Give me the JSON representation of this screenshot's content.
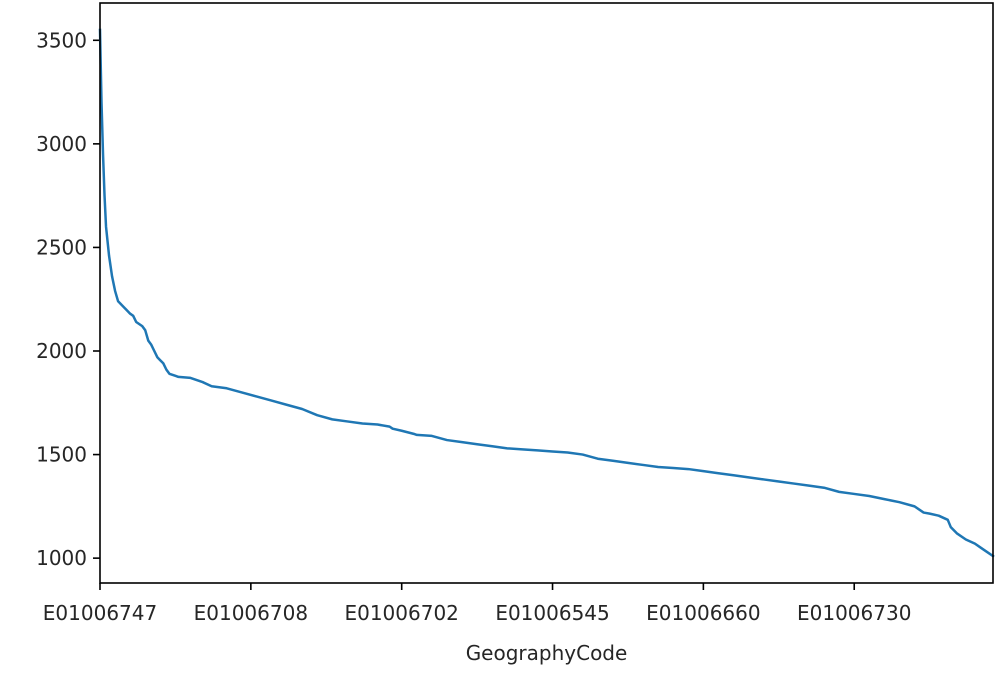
{
  "chart_data": {
    "type": "line",
    "title": "",
    "xlabel": "GeographyCode",
    "ylabel": "",
    "x_tick_labels": [
      "E01006747",
      "E01006708",
      "E01006702",
      "E01006545",
      "E01006660",
      "E01006730"
    ],
    "x_tick_positions": [
      0,
      50,
      100,
      150,
      200,
      250
    ],
    "xlim": [
      0,
      296
    ],
    "ylim": [
      880,
      3680
    ],
    "y_ticks": [
      1000,
      1500,
      2000,
      2500,
      3000,
      3500
    ],
    "grid": false,
    "legend": "none",
    "series": [
      {
        "color": "#1f77b4",
        "x": [
          0,
          0.5,
          1,
          1.5,
          2,
          3,
          4,
          5,
          6,
          8,
          10,
          11,
          12,
          14,
          15,
          16,
          17,
          18,
          19,
          20,
          21,
          22,
          23,
          24,
          25,
          26,
          30,
          34,
          37,
          42,
          47,
          52,
          57,
          62,
          67,
          72,
          77,
          82,
          87,
          92,
          96,
          97,
          100,
          104,
          105,
          110,
          115,
          120,
          125,
          130,
          135,
          140,
          145,
          150,
          155,
          160,
          165,
          170,
          175,
          180,
          185,
          190,
          195,
          200,
          205,
          210,
          215,
          220,
          225,
          230,
          235,
          240,
          245,
          250,
          255,
          260,
          265,
          270,
          273,
          275,
          278,
          281,
          282,
          284,
          287,
          290,
          292,
          294,
          296
        ],
        "values": [
          3550,
          3200,
          2950,
          2750,
          2600,
          2460,
          2360,
          2290,
          2240,
          2210,
          2180,
          2170,
          2140,
          2120,
          2100,
          2050,
          2030,
          2000,
          1970,
          1955,
          1940,
          1910,
          1890,
          1885,
          1880,
          1875,
          1870,
          1850,
          1830,
          1820,
          1800,
          1780,
          1760,
          1740,
          1720,
          1690,
          1670,
          1660,
          1650,
          1645,
          1635,
          1625,
          1615,
          1600,
          1595,
          1590,
          1570,
          1560,
          1550,
          1540,
          1530,
          1525,
          1520,
          1515,
          1510,
          1500,
          1480,
          1470,
          1460,
          1450,
          1440,
          1435,
          1430,
          1420,
          1410,
          1400,
          1390,
          1380,
          1370,
          1360,
          1350,
          1340,
          1320,
          1310,
          1300,
          1285,
          1270,
          1250,
          1220,
          1215,
          1205,
          1185,
          1150,
          1120,
          1090,
          1070,
          1050,
          1030,
          1010
        ]
      }
    ]
  }
}
